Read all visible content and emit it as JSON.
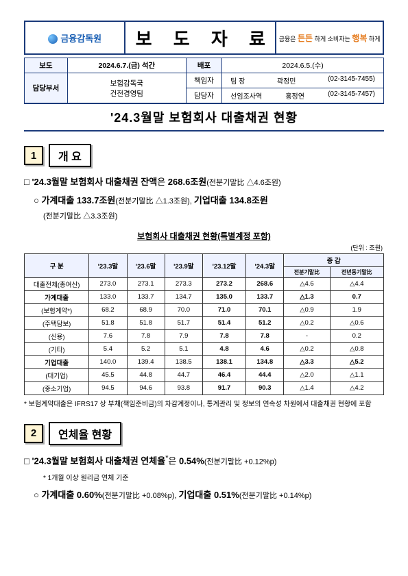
{
  "header": {
    "org": "금융감독원",
    "title": "보 도 자 료",
    "slogan_prefix": "금융은",
    "slogan_word1": "든든",
    "slogan_mid": "하게 소비자는",
    "slogan_word2": "행복",
    "slogan_suffix": "하게"
  },
  "meta": {
    "row1": {
      "l1": "보도",
      "v1": "2024.6.7.(금) 석간",
      "l2": "배포",
      "v2": "2024.6.5.(수)"
    },
    "row2": {
      "l1": "담당부서",
      "v1a": "보험감독국",
      "v1b": "건전경영팀",
      "c1_l": "책임자",
      "c1_r": "팀    장",
      "c1_n": "곽정민",
      "c1_t": "(02-3145-7455)",
      "c2_l": "담당자",
      "c2_r": "선임조사역",
      "c2_n": "홍정연",
      "c2_t": "(02-3145-7457)"
    }
  },
  "doc_title": "'24.3월말 보험회사 대출채권 현황",
  "sec1": {
    "num": "1",
    "title": "개  요",
    "p1_a": "□ '24.3월말 보험회사 대출채권 잔액",
    "p1_b": "은 ",
    "p1_c": "268.6조원",
    "p1_d": "(전분기말比 △4.6조원)",
    "p2_a": "○ ",
    "p2_b": "가계대출  133.7조원",
    "p2_c": "(전분기말比  △1.3조원), ",
    "p2_d": "기업대출  134.8조원",
    "p2_e": "(전분기말比 △3.3조원)"
  },
  "table": {
    "title": "보험회사 대출채권 현황(특별계정 포함)",
    "unit": "(단위 : 조원)",
    "head": {
      "c0": "구  분",
      "c1": "'23.3말",
      "c2": "'23.6말",
      "c3": "'23.9말",
      "c4": "'23.12말",
      "c5": "'24.3말",
      "g": "증   감",
      "g1": "전분기말比",
      "g2": "전년동기말比"
    },
    "rows": [
      {
        "label": "대출전체(총여신)",
        "v": [
          "273.0",
          "273.1",
          "273.3",
          "273.2",
          "268.6",
          "△4.6",
          "△4.4"
        ],
        "cls": "col-label"
      },
      {
        "label": "가계대출",
        "v": [
          "133.0",
          "133.7",
          "134.7",
          "135.0",
          "133.7",
          "△1.3",
          "0.7"
        ],
        "cls": "indent1",
        "bold": true
      },
      {
        "label": "(보험계약*)",
        "v": [
          "68.2",
          "68.9",
          "70.0",
          "71.0",
          "70.1",
          "△0.9",
          "1.9"
        ],
        "cls": "indent2"
      },
      {
        "label": "(주택담보)",
        "v": [
          "51.8",
          "51.8",
          "51.7",
          "51.4",
          "51.2",
          "△0.2",
          "△0.6"
        ],
        "cls": "indent2"
      },
      {
        "label": "(신용)",
        "v": [
          "7.6",
          "7.8",
          "7.9",
          "7.8",
          "7.8",
          "-",
          "0.2"
        ],
        "cls": "indent2"
      },
      {
        "label": "(기타)",
        "v": [
          "5.4",
          "5.2",
          "5.1",
          "4.8",
          "4.6",
          "△0.2",
          "△0.8"
        ],
        "cls": "indent2"
      },
      {
        "label": "기업대출",
        "v": [
          "140.0",
          "139.4",
          "138.5",
          "138.1",
          "134.8",
          "△3.3",
          "△5.2"
        ],
        "cls": "indent1",
        "bold": true
      },
      {
        "label": "(대기업)",
        "v": [
          "45.5",
          "44.8",
          "44.7",
          "46.4",
          "44.4",
          "△2.0",
          "△1.1"
        ],
        "cls": "indent2"
      },
      {
        "label": "(중소기업)",
        "v": [
          "94.5",
          "94.6",
          "93.8",
          "91.7",
          "90.3",
          "△1.4",
          "△4.2"
        ],
        "cls": "indent2"
      }
    ],
    "footnote": "* 보험계약대출은 IFRS17 상 부채(책임준비금)의 차감계정이나, 통계관리 및 정보의 연속성 차원에서 대출채권 현황에 포함"
  },
  "sec2": {
    "num": "2",
    "title": "연체율 현황",
    "p1": "□ '24.3월말 보험회사 대출채권 연체율*은 0.54%(전분기말比 +0.12%p)",
    "p1_pre": "□ '24.3월말 보험회사 대출채권 연체율",
    "p1_ast": "*",
    "p1_mid": "은 ",
    "p1_val": "0.54%",
    "p1_suf": "(전분기말比 +0.12%p)",
    "note": "* 1개월 이상 원리금 연체 기준",
    "p2_a": "○ ",
    "p2_b": "가계대출 0.60%",
    "p2_c": "(전분기말比 +0.08%p), ",
    "p2_d": "기업대출 0.51%",
    "p2_e": "(전분기말比 +0.14%p)"
  }
}
